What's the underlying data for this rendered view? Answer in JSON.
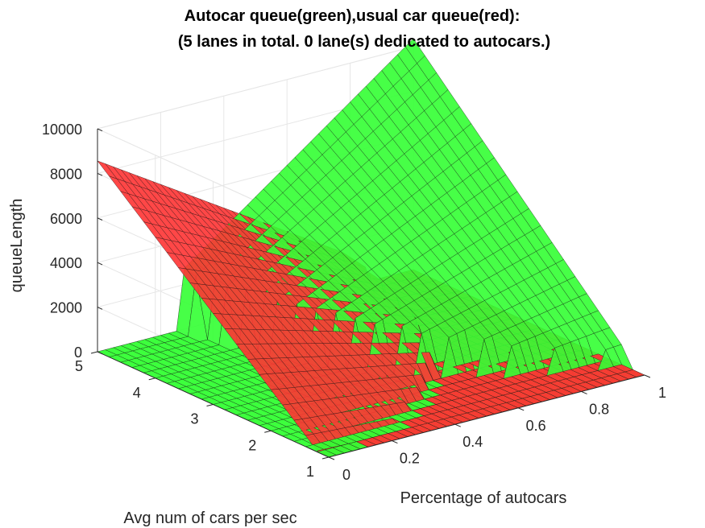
{
  "chart_data": {
    "type": "surface",
    "title_lines": [
      "Autocar queue(green),usual car queue(red):",
      "(5 lanes in total. 0 lane(s) dedicated to autocars.)"
    ],
    "xlabel": "Percentage of autocars",
    "ylabel": "Avg num of cars per sec",
    "zlabel": "queueLength",
    "xlim": [
      0,
      1
    ],
    "ylim": [
      1,
      5
    ],
    "zlim": [
      0,
      10000
    ],
    "x_ticks": [
      0,
      0.2,
      0.4,
      0.6,
      0.8,
      1
    ],
    "x_tick_labels": [
      "0",
      "0.2",
      "0.4",
      "0.6",
      "0.8",
      "1"
    ],
    "y_ticks": [
      1,
      2,
      3,
      4,
      5
    ],
    "y_tick_labels": [
      "1",
      "2",
      "3",
      "4",
      "5"
    ],
    "z_ticks": [
      0,
      2000,
      4000,
      6000,
      8000,
      10000
    ],
    "z_tick_labels": [
      "0",
      "2000",
      "4000",
      "6000",
      "8000",
      "10000"
    ],
    "grid": true,
    "grid_resolution": {
      "x_steps": 40,
      "y_steps": 20
    },
    "series": [
      {
        "name": "Autocar queue",
        "color": "#33ff33",
        "corner_values": [
          {
            "x": 0,
            "y": 1,
            "z": 0
          },
          {
            "x": 1,
            "y": 1,
            "z": 0
          },
          {
            "x": 0,
            "y": 5,
            "z": 0
          },
          {
            "x": 1,
            "y": 5,
            "z": 10300
          }
        ],
        "zero_region": "x*y <= 1.3"
      },
      {
        "name": "usual car queue",
        "color": "#ff3333",
        "corner_values": [
          {
            "x": 0,
            "y": 1,
            "z": 0
          },
          {
            "x": 1,
            "y": 1,
            "z": 0
          },
          {
            "x": 0,
            "y": 5,
            "z": 8000
          },
          {
            "x": 1,
            "y": 5,
            "z": 0
          }
        ],
        "zero_region": "(1-x)*y <= 1.0"
      }
    ]
  }
}
